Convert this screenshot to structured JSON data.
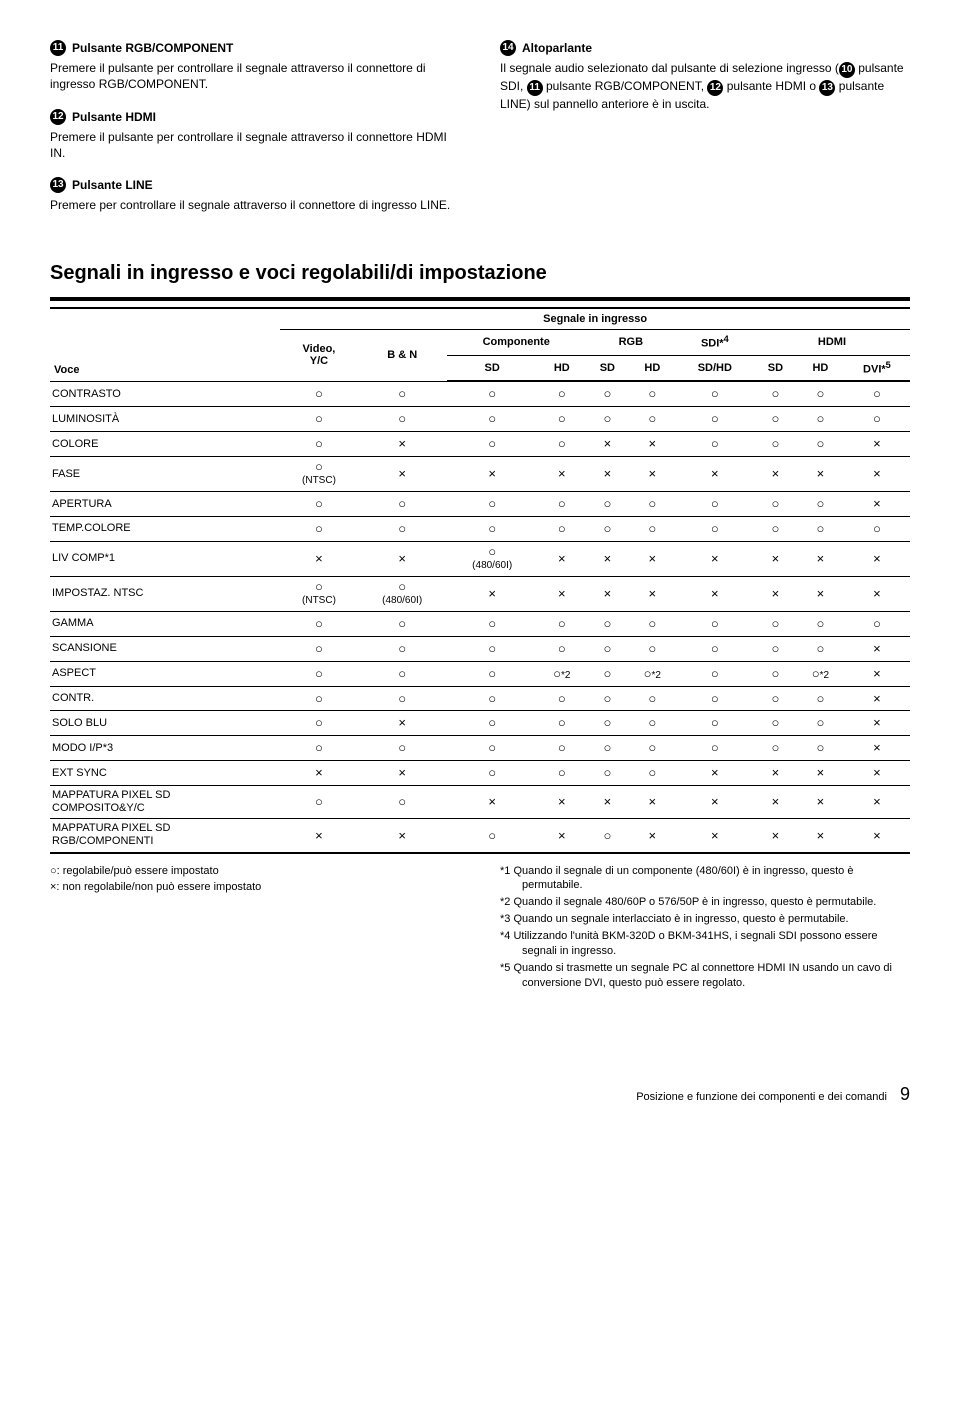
{
  "sections": {
    "s11": {
      "num": "11",
      "title": "Pulsante RGB/COMPONENT",
      "body": "Premere il pulsante per controllare il segnale attraverso il connettore di ingresso RGB/COMPONENT."
    },
    "s12": {
      "num": "12",
      "title": "Pulsante HDMI",
      "body": "Premere il pulsante per controllare il segnale attraverso il connettore HDMI IN."
    },
    "s13": {
      "num": "13",
      "title": "Pulsante LINE",
      "body": "Premere per controllare il segnale attraverso il connettore di ingresso LINE."
    },
    "s14": {
      "num": "14",
      "title": "Altoparlante",
      "body_pre": "Il segnale audio selezionato dal pulsante di selezione ingresso (",
      "p10": "10",
      "t10": " pulsante SDI, ",
      "p11": "11",
      "t11": " pulsante RGB/COMPONENT, ",
      "p12": "12",
      "t12": " pulsante HDMI o ",
      "p13": "13",
      "t13": " pulsante LINE) sul pannello anteriore è in uscita."
    }
  },
  "heading": "Segnali in ingresso e voci regolabili/di impostazione",
  "thead": {
    "voce": "Voce",
    "signal": "Segnale in ingresso",
    "video": "Video,\nY/C",
    "bn": "B & N",
    "componente": "Componente",
    "rgb": "RGB",
    "sdi": "SDI*",
    "sdi_sup": "4",
    "hdmi": "HDMI",
    "sd": "SD",
    "hd": "HD",
    "sdhd": "SD/HD",
    "dvi": "DVI*",
    "dvi_sup": "5"
  },
  "rows": [
    {
      "label": "CONTRASTO",
      "cells": [
        "o",
        "o",
        "o",
        "o",
        "o",
        "o",
        "o",
        "o",
        "o",
        "o"
      ]
    },
    {
      "label": "LUMINOSITÀ",
      "cells": [
        "o",
        "o",
        "o",
        "o",
        "o",
        "o",
        "o",
        "o",
        "o",
        "o"
      ]
    },
    {
      "label": "COLORE",
      "cells": [
        "o",
        "x",
        "o",
        "o",
        "x",
        "x",
        "o",
        "o",
        "o",
        "x"
      ]
    },
    {
      "label": "FASE",
      "cells": [
        "o_ntsc",
        "x",
        "x",
        "x",
        "x",
        "x",
        "x",
        "x",
        "x",
        "x"
      ]
    },
    {
      "label": "APERTURA",
      "cells": [
        "o",
        "o",
        "o",
        "o",
        "o",
        "o",
        "o",
        "o",
        "o",
        "x"
      ]
    },
    {
      "label": "TEMP.COLORE",
      "cells": [
        "o",
        "o",
        "o",
        "o",
        "o",
        "o",
        "o",
        "o",
        "o",
        "o"
      ]
    },
    {
      "label": "LIV COMP*1",
      "cells": [
        "x",
        "x",
        "o_480",
        "x",
        "x",
        "x",
        "x",
        "x",
        "x",
        "x"
      ]
    },
    {
      "label": "IMPOSTAZ. NTSC",
      "cells": [
        "o_ntsc",
        "o_480",
        "x",
        "x",
        "x",
        "x",
        "x",
        "x",
        "x",
        "x"
      ]
    },
    {
      "label": "GAMMA",
      "cells": [
        "o",
        "o",
        "o",
        "o",
        "o",
        "o",
        "o",
        "o",
        "o",
        "o"
      ]
    },
    {
      "label": "SCANSIONE",
      "cells": [
        "o",
        "o",
        "o",
        "o",
        "o",
        "o",
        "o",
        "o",
        "o",
        "x"
      ]
    },
    {
      "label": "ASPECT",
      "cells": [
        "o",
        "o",
        "o",
        "o*2",
        "o",
        "o*2",
        "o",
        "o",
        "o*2",
        "x"
      ]
    },
    {
      "label": "CONTR.",
      "cells": [
        "o",
        "o",
        "o",
        "o",
        "o",
        "o",
        "o",
        "o",
        "o",
        "x"
      ]
    },
    {
      "label": "SOLO BLU",
      "cells": [
        "o",
        "x",
        "o",
        "o",
        "o",
        "o",
        "o",
        "o",
        "o",
        "x"
      ]
    },
    {
      "label": "MODO I/P*3",
      "cells": [
        "o",
        "o",
        "o",
        "o",
        "o",
        "o",
        "o",
        "o",
        "o",
        "x"
      ]
    },
    {
      "label": "EXT SYNC",
      "cells": [
        "x",
        "x",
        "o",
        "o",
        "o",
        "o",
        "x",
        "x",
        "x",
        "x"
      ]
    },
    {
      "label": "MAPPATURA PIXEL SD\nCOMPOSITO&Y/C",
      "cells": [
        "o",
        "o",
        "x",
        "x",
        "x",
        "x",
        "x",
        "x",
        "x",
        "x"
      ],
      "wrap": true
    },
    {
      "label": "MAPPATURA PIXEL SD\nRGB/COMPONENTI",
      "cells": [
        "x",
        "x",
        "o",
        "x",
        "o",
        "x",
        "x",
        "x",
        "x",
        "x"
      ],
      "wrap": true,
      "last": true
    }
  ],
  "legend": {
    "ok": "○: regolabile/può essere impostato",
    "no": "×: non regolabile/non può essere impostato"
  },
  "footnotes": {
    "n1": "*1  Quando il segnale di un componente (480/60I) è in ingresso, questo è permutabile.",
    "n2": "*2  Quando il segnale 480/60P o 576/50P è in ingresso, questo è permutabile.",
    "n3": "*3  Quando un segnale interlacciato è in ingresso, questo è permutabile.",
    "n4": "*4  Utilizzando l'unità BKM-320D o BKM-341HS, i segnali SDI possono essere segnali in ingresso.",
    "n5": "*5  Quando si trasmette un segnale PC al connettore HDMI IN usando un cavo di conversione DVI, questo può essere regolato."
  },
  "footer": {
    "text": "Posizione e funzione dei componenti e dei comandi",
    "page": "9"
  },
  "annot": {
    "ntsc": "(NTSC)",
    "p480": "(480/60I)",
    "star2": "*2"
  }
}
